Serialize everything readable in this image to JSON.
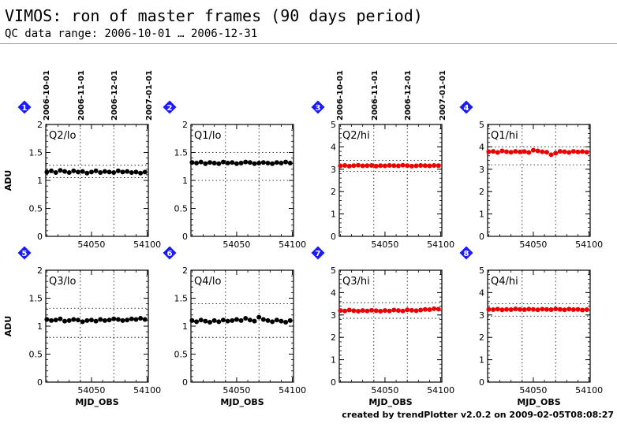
{
  "header": {
    "title": "VIMOS: ron of master frames (90 days period)",
    "subtitle": "QC data range: 2006-10-01 … 2006-12-31"
  },
  "footer": "created by trendPlotter v2.0.2 on 2009-02-05T08:08:27",
  "colors": {
    "lo": "#000000",
    "hi": "#ee0000",
    "badge": "#1a1aff"
  },
  "date_ticks": [
    "2006-10-01",
    "2006-11-01",
    "2006-12-01",
    "2007-01-01"
  ],
  "chart_data": [
    {
      "type": "scatter",
      "panel": "1",
      "label": "Q2/lo",
      "ylabel": "ADU",
      "xlabel": "",
      "xlim": [
        54009,
        54101
      ],
      "ylim": [
        0,
        2
      ],
      "yticks": [
        "0",
        "0.5",
        "1",
        "1.5",
        "2"
      ],
      "xticks": [
        "54050",
        "54100"
      ],
      "ref_lines": [
        1.05,
        1.27
      ],
      "color": "#000000",
      "x": [
        54010,
        54014,
        54018,
        54022,
        54026,
        54030,
        54034,
        54038,
        54042,
        54046,
        54050,
        54054,
        54058,
        54062,
        54066,
        54070,
        54074,
        54078,
        54082,
        54086,
        54090,
        54094,
        54098
      ],
      "y": [
        1.15,
        1.17,
        1.14,
        1.18,
        1.16,
        1.14,
        1.17,
        1.15,
        1.16,
        1.13,
        1.15,
        1.17,
        1.14,
        1.16,
        1.15,
        1.14,
        1.17,
        1.15,
        1.16,
        1.14,
        1.15,
        1.13,
        1.15
      ]
    },
    {
      "type": "scatter",
      "panel": "2",
      "label": "Q1/lo",
      "ylabel": "",
      "xlabel": "",
      "xlim": [
        54009,
        54101
      ],
      "ylim": [
        0,
        2
      ],
      "yticks": [
        "0",
        "0.5",
        "1",
        "1.5",
        "2"
      ],
      "xticks": [
        "54050",
        "54100"
      ],
      "ref_lines": [
        1.0,
        1.5
      ],
      "color": "#000000",
      "x": [
        54010,
        54014,
        54018,
        54022,
        54026,
        54030,
        54034,
        54038,
        54042,
        54046,
        54050,
        54054,
        54058,
        54062,
        54066,
        54070,
        54074,
        54078,
        54082,
        54086,
        54090,
        54094,
        54098
      ],
      "y": [
        1.32,
        1.31,
        1.33,
        1.3,
        1.32,
        1.31,
        1.3,
        1.33,
        1.31,
        1.32,
        1.3,
        1.31,
        1.33,
        1.32,
        1.3,
        1.31,
        1.32,
        1.31,
        1.3,
        1.32,
        1.31,
        1.33,
        1.31
      ]
    },
    {
      "type": "scatter",
      "panel": "3",
      "label": "Q2/hi",
      "ylabel": "",
      "xlabel": "",
      "xlim": [
        54009,
        54101
      ],
      "ylim": [
        0,
        5
      ],
      "yticks": [
        "0",
        "1",
        "2",
        "3",
        "4",
        "5"
      ],
      "xticks": [
        "54050",
        "54100"
      ],
      "ref_lines": [
        2.9,
        3.4
      ],
      "color": "#ee0000",
      "x": [
        54010,
        54014,
        54018,
        54022,
        54026,
        54030,
        54034,
        54038,
        54042,
        54046,
        54050,
        54054,
        54058,
        54062,
        54066,
        54070,
        54074,
        54078,
        54082,
        54086,
        54090,
        54094,
        54098
      ],
      "y": [
        3.15,
        3.17,
        3.14,
        3.16,
        3.18,
        3.15,
        3.16,
        3.17,
        3.14,
        3.16,
        3.15,
        3.17,
        3.16,
        3.15,
        3.18,
        3.16,
        3.14,
        3.15,
        3.17,
        3.16,
        3.15,
        3.17,
        3.16
      ]
    },
    {
      "type": "scatter",
      "panel": "4",
      "label": "Q1/hi",
      "ylabel": "",
      "xlabel": "",
      "xlim": [
        54009,
        54101
      ],
      "ylim": [
        0,
        5
      ],
      "yticks": [
        "0",
        "1",
        "2",
        "3",
        "4",
        "5"
      ],
      "xticks": [
        "54050",
        "54100"
      ],
      "ref_lines": [
        3.2,
        4.0
      ],
      "color": "#ee0000",
      "x": [
        54010,
        54014,
        54018,
        54022,
        54026,
        54030,
        54034,
        54038,
        54042,
        54046,
        54050,
        54054,
        54058,
        54062,
        54066,
        54070,
        54074,
        54078,
        54082,
        54086,
        54090,
        54094,
        54098
      ],
      "y": [
        3.78,
        3.8,
        3.75,
        3.82,
        3.78,
        3.76,
        3.8,
        3.77,
        3.79,
        3.75,
        3.85,
        3.82,
        3.78,
        3.76,
        3.65,
        3.72,
        3.8,
        3.78,
        3.75,
        3.8,
        3.77,
        3.79,
        3.76
      ]
    },
    {
      "type": "scatter",
      "panel": "5",
      "label": "Q3/lo",
      "ylabel": "ADU",
      "xlabel": "MJD_OBS",
      "xlim": [
        54009,
        54101
      ],
      "ylim": [
        0,
        2
      ],
      "yticks": [
        "0",
        "0.5",
        "1",
        "1.5",
        "2"
      ],
      "xticks": [
        "54050",
        "54100"
      ],
      "ref_lines": [
        0.8,
        1.32
      ],
      "color": "#000000",
      "x": [
        54010,
        54014,
        54018,
        54022,
        54026,
        54030,
        54034,
        54038,
        54042,
        54046,
        54050,
        54054,
        54058,
        54062,
        54066,
        54070,
        54074,
        54078,
        54082,
        54086,
        54090,
        54094,
        54098
      ],
      "y": [
        1.12,
        1.1,
        1.11,
        1.13,
        1.09,
        1.1,
        1.12,
        1.11,
        1.08,
        1.1,
        1.11,
        1.09,
        1.12,
        1.1,
        1.11,
        1.13,
        1.12,
        1.1,
        1.11,
        1.13,
        1.12,
        1.14,
        1.12
      ]
    },
    {
      "type": "scatter",
      "panel": "6",
      "label": "Q4/lo",
      "ylabel": "",
      "xlabel": "MJD_OBS",
      "xlim": [
        54009,
        54101
      ],
      "ylim": [
        0,
        2
      ],
      "yticks": [
        "0",
        "0.5",
        "1",
        "1.5",
        "2"
      ],
      "xticks": [
        "54050",
        "54100"
      ],
      "ref_lines": [
        0.8,
        1.4
      ],
      "color": "#000000",
      "x": [
        54010,
        54014,
        54018,
        54022,
        54026,
        54030,
        54034,
        54038,
        54042,
        54046,
        54050,
        54054,
        54058,
        54062,
        54066,
        54070,
        54074,
        54078,
        54082,
        54086,
        54090,
        54094,
        54098
      ],
      "y": [
        1.1,
        1.08,
        1.11,
        1.09,
        1.07,
        1.1,
        1.08,
        1.11,
        1.09,
        1.1,
        1.12,
        1.1,
        1.14,
        1.11,
        1.09,
        1.16,
        1.12,
        1.1,
        1.08,
        1.11,
        1.09,
        1.07,
        1.1
      ]
    },
    {
      "type": "scatter",
      "panel": "7",
      "label": "Q3/hi",
      "ylabel": "",
      "xlabel": "MJD_OBS",
      "xlim": [
        54009,
        54101
      ],
      "ylim": [
        0,
        5
      ],
      "yticks": [
        "0",
        "1",
        "2",
        "3",
        "4",
        "5"
      ],
      "xticks": [
        "54050",
        "54100"
      ],
      "ref_lines": [
        2.85,
        3.55
      ],
      "color": "#ee0000",
      "x": [
        54010,
        54014,
        54018,
        54022,
        54026,
        54030,
        54034,
        54038,
        54042,
        54046,
        54050,
        54054,
        54058,
        54062,
        54066,
        54070,
        54074,
        54078,
        54082,
        54086,
        54090,
        54094,
        54098
      ],
      "y": [
        3.2,
        3.18,
        3.22,
        3.19,
        3.17,
        3.2,
        3.18,
        3.21,
        3.19,
        3.17,
        3.2,
        3.18,
        3.22,
        3.2,
        3.18,
        3.23,
        3.21,
        3.19,
        3.22,
        3.25,
        3.24,
        3.28,
        3.26
      ]
    },
    {
      "type": "scatter",
      "panel": "8",
      "label": "Q4/hi",
      "ylabel": "",
      "xlabel": "MJD_OBS",
      "xlim": [
        54009,
        54101
      ],
      "ylim": [
        0,
        5
      ],
      "yticks": [
        "0",
        "1",
        "2",
        "3",
        "4",
        "5"
      ],
      "xticks": [
        "54050",
        "54100"
      ],
      "ref_lines": [
        2.95,
        3.5
      ],
      "color": "#ee0000",
      "x": [
        54010,
        54014,
        54018,
        54022,
        54026,
        54030,
        54034,
        54038,
        54042,
        54046,
        54050,
        54054,
        54058,
        54062,
        54066,
        54070,
        54074,
        54078,
        54082,
        54086,
        54090,
        54094,
        54098
      ],
      "y": [
        3.25,
        3.24,
        3.26,
        3.23,
        3.25,
        3.24,
        3.27,
        3.25,
        3.24,
        3.26,
        3.25,
        3.23,
        3.26,
        3.25,
        3.24,
        3.27,
        3.25,
        3.23,
        3.26,
        3.24,
        3.25,
        3.22,
        3.24
      ]
    }
  ]
}
